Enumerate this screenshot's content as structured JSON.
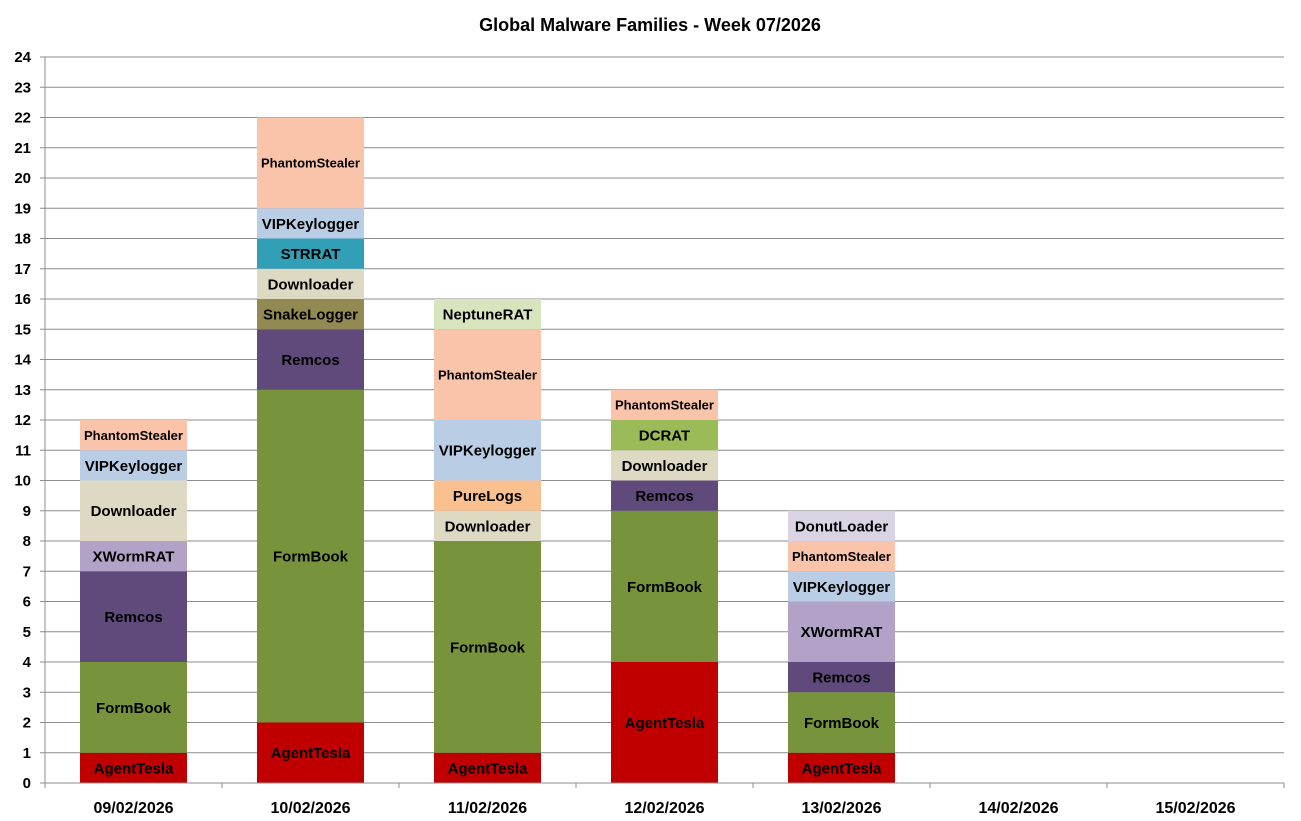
{
  "chart_data": {
    "type": "bar",
    "stacked": true,
    "title": "Global Malware Families - Week 07/2026",
    "xlabel": "",
    "ylabel": "",
    "ylim": [
      0,
      24
    ],
    "yticks": [
      0,
      1,
      2,
      3,
      4,
      5,
      6,
      7,
      8,
      9,
      10,
      11,
      12,
      13,
      14,
      15,
      16,
      17,
      18,
      19,
      20,
      21,
      22,
      23,
      24
    ],
    "grid": true,
    "legend": "none",
    "categories": [
      "09/02/2026",
      "10/02/2026",
      "11/02/2026",
      "12/02/2026",
      "13/02/2026",
      "14/02/2026",
      "15/02/2026"
    ],
    "family_colors": {
      "AgentTesla": "#c00000",
      "FormBook": "#77933c",
      "Remcos": "#604a7b",
      "XWormRAT": "#b3a2c7",
      "Downloader": "#ddd9c3",
      "VIPKeylogger": "#b9cde5",
      "PhantomStealer": "#fac4ab",
      "SnakeLogger": "#938953",
      "STRRAT": "#31a0b7",
      "PureLogs": "#fac090",
      "NeptuneRAT": "#d7e4bd",
      "DCRAT": "#9bbb59",
      "DonutLoader": "#d9d3e4"
    },
    "stacks": [
      [
        {
          "family": "AgentTesla",
          "value": 1
        },
        {
          "family": "FormBook",
          "value": 3
        },
        {
          "family": "Remcos",
          "value": 3
        },
        {
          "family": "XWormRAT",
          "value": 1
        },
        {
          "family": "Downloader",
          "value": 2
        },
        {
          "family": "VIPKeylogger",
          "value": 1
        },
        {
          "family": "PhantomStealer",
          "value": 1
        }
      ],
      [
        {
          "family": "AgentTesla",
          "value": 2
        },
        {
          "family": "FormBook",
          "value": 11
        },
        {
          "family": "Remcos",
          "value": 2
        },
        {
          "family": "SnakeLogger",
          "value": 1
        },
        {
          "family": "Downloader",
          "value": 1
        },
        {
          "family": "STRRAT",
          "value": 1
        },
        {
          "family": "VIPKeylogger",
          "value": 1
        },
        {
          "family": "PhantomStealer",
          "value": 3
        }
      ],
      [
        {
          "family": "AgentTesla",
          "value": 1
        },
        {
          "family": "FormBook",
          "value": 7
        },
        {
          "family": "Downloader",
          "value": 1
        },
        {
          "family": "PureLogs",
          "value": 1
        },
        {
          "family": "VIPKeylogger",
          "value": 2
        },
        {
          "family": "PhantomStealer",
          "value": 3
        },
        {
          "family": "NeptuneRAT",
          "value": 1
        }
      ],
      [
        {
          "family": "AgentTesla",
          "value": 4
        },
        {
          "family": "FormBook",
          "value": 5
        },
        {
          "family": "Remcos",
          "value": 1
        },
        {
          "family": "Downloader",
          "value": 1
        },
        {
          "family": "DCRAT",
          "value": 1
        },
        {
          "family": "PhantomStealer",
          "value": 1
        }
      ],
      [
        {
          "family": "AgentTesla",
          "value": 1
        },
        {
          "family": "FormBook",
          "value": 2
        },
        {
          "family": "Remcos",
          "value": 1
        },
        {
          "family": "XWormRAT",
          "value": 2
        },
        {
          "family": "VIPKeylogger",
          "value": 1
        },
        {
          "family": "PhantomStealer",
          "value": 1
        },
        {
          "family": "DonutLoader",
          "value": 1
        }
      ],
      [],
      []
    ]
  }
}
